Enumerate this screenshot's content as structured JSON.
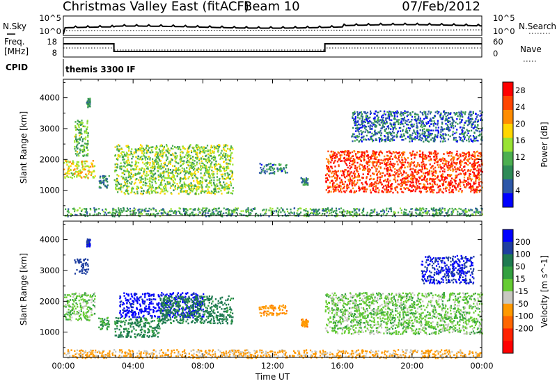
{
  "header": {
    "title": "Christmas Valley East (fitACF)",
    "beam": "Beam 10",
    "date": "07/Feb/2012"
  },
  "top_panels": {
    "nsky_label": "N.Sky",
    "nsky_ticks": [
      "10^5",
      "10^0"
    ],
    "nsearch_label": "N.Search",
    "nsearch_ticks": [
      "10^5",
      "10^0"
    ],
    "freq_label_1": "Freq.",
    "freq_label_2": "[MHz]",
    "freq_ticks": [
      "18",
      "8"
    ],
    "nave_label": "Nave",
    "nave_ticks": [
      "60",
      "0"
    ],
    "cpid_label": "CPID",
    "cpid_text": "themis 3300 IF"
  },
  "colors": {
    "power": [
      "#0000ff",
      "#2d57a8",
      "#2e8b57",
      "#4caf50",
      "#99e333",
      "#ffd700",
      "#ff8c00",
      "#ff4500",
      "#ff0000"
    ],
    "velocity": [
      "#0000ff",
      "#1f3fa0",
      "#1e7a50",
      "#33a040",
      "#66cc33",
      "#c8c8c0",
      "#ff9900",
      "#ff6600",
      "#ff2200",
      "#ff0000"
    ],
    "ground_scatter": "#c8c8c0"
  },
  "chart_data": [
    {
      "type": "heatmap",
      "title": "",
      "xlabel": "Time UT",
      "ylabel": "Slant Range [km]",
      "x_ticks": [
        "00:00",
        "04:00",
        "08:00",
        "12:00",
        "16:00",
        "20:00",
        "00:00"
      ],
      "xlim_hours": [
        0,
        24
      ],
      "y_ticks": [
        1000,
        2000,
        3000,
        4000
      ],
      "ylim": [
        180,
        4600
      ],
      "colorbar_label": "Power [dB]",
      "colorbar_ticks": [
        4,
        8,
        12,
        16,
        20,
        24,
        28
      ],
      "colorbar_range": [
        0,
        30
      ],
      "regions": [
        {
          "t0": 0.0,
          "t1": 1.8,
          "r0": 1400,
          "r1": 2000,
          "value": 18
        },
        {
          "t0": 0.6,
          "t1": 1.4,
          "r0": 2100,
          "r1": 3300,
          "value": 12
        },
        {
          "t0": 1.3,
          "t1": 1.5,
          "r0": 3700,
          "r1": 4000,
          "value": 10
        },
        {
          "t0": 2.0,
          "t1": 2.6,
          "r0": 1100,
          "r1": 1500,
          "value": 8
        },
        {
          "t0": 2.9,
          "t1": 9.7,
          "r0": 900,
          "r1": 2500,
          "value": 14
        },
        {
          "t0": 11.2,
          "t1": 12.8,
          "r0": 1550,
          "r1": 1900,
          "value": 8
        },
        {
          "t0": 13.6,
          "t1": 14.0,
          "r0": 1200,
          "r1": 1450,
          "value": 8
        },
        {
          "t0": 15.0,
          "t1": 24.0,
          "r0": 950,
          "r1": 2300,
          "value": 26
        },
        {
          "t0": 16.5,
          "t1": 24.0,
          "r0": 2600,
          "r1": 3600,
          "value": 6
        },
        {
          "t0": 0.0,
          "t1": 24.0,
          "r0": 180,
          "r1": 450,
          "value": 10
        }
      ]
    },
    {
      "type": "heatmap",
      "title": "",
      "xlabel": "Time UT",
      "ylabel": "Slant Range [km]",
      "x_ticks": [
        "00:00",
        "04:00",
        "08:00",
        "12:00",
        "16:00",
        "20:00",
        "00:00"
      ],
      "xlim_hours": [
        0,
        24
      ],
      "y_ticks": [
        1000,
        2000,
        3000,
        4000
      ],
      "ylim": [
        180,
        4600
      ],
      "colorbar_label": "Velocity [m s^-1]",
      "colorbar_ticks": [
        200,
        100,
        50,
        15,
        -15,
        -50,
        -100,
        -200
      ],
      "colorbar_range": [
        -250,
        250
      ],
      "regions": [
        {
          "t0": 0.0,
          "t1": 1.8,
          "r0": 1400,
          "r1": 2300,
          "value": 0
        },
        {
          "t0": 0.6,
          "t1": 1.4,
          "r0": 2900,
          "r1": 3400,
          "value": 150
        },
        {
          "t0": 1.3,
          "t1": 1.5,
          "r0": 3800,
          "r1": 4050,
          "value": 200
        },
        {
          "t0": 2.0,
          "t1": 2.6,
          "r0": 1100,
          "r1": 1500,
          "value": 40
        },
        {
          "t0": 2.9,
          "t1": 5.5,
          "r0": 850,
          "r1": 1500,
          "value": 60
        },
        {
          "t0": 3.2,
          "t1": 8.0,
          "r0": 1500,
          "r1": 2300,
          "value": 220
        },
        {
          "t0": 5.5,
          "t1": 9.7,
          "r0": 1300,
          "r1": 2200,
          "value": 70
        },
        {
          "t0": 11.2,
          "t1": 12.8,
          "r0": 1550,
          "r1": 1900,
          "value": -80
        },
        {
          "t0": 13.6,
          "t1": 14.0,
          "r0": 1200,
          "r1": 1450,
          "value": -80
        },
        {
          "t0": 15.0,
          "t1": 24.0,
          "r0": 950,
          "r1": 2300,
          "value": 0
        },
        {
          "t0": 20.5,
          "t1": 23.5,
          "r0": 2600,
          "r1": 3500,
          "value": 200
        },
        {
          "t0": 0.0,
          "t1": 24.0,
          "r0": 180,
          "r1": 450,
          "value": -60
        }
      ]
    }
  ]
}
